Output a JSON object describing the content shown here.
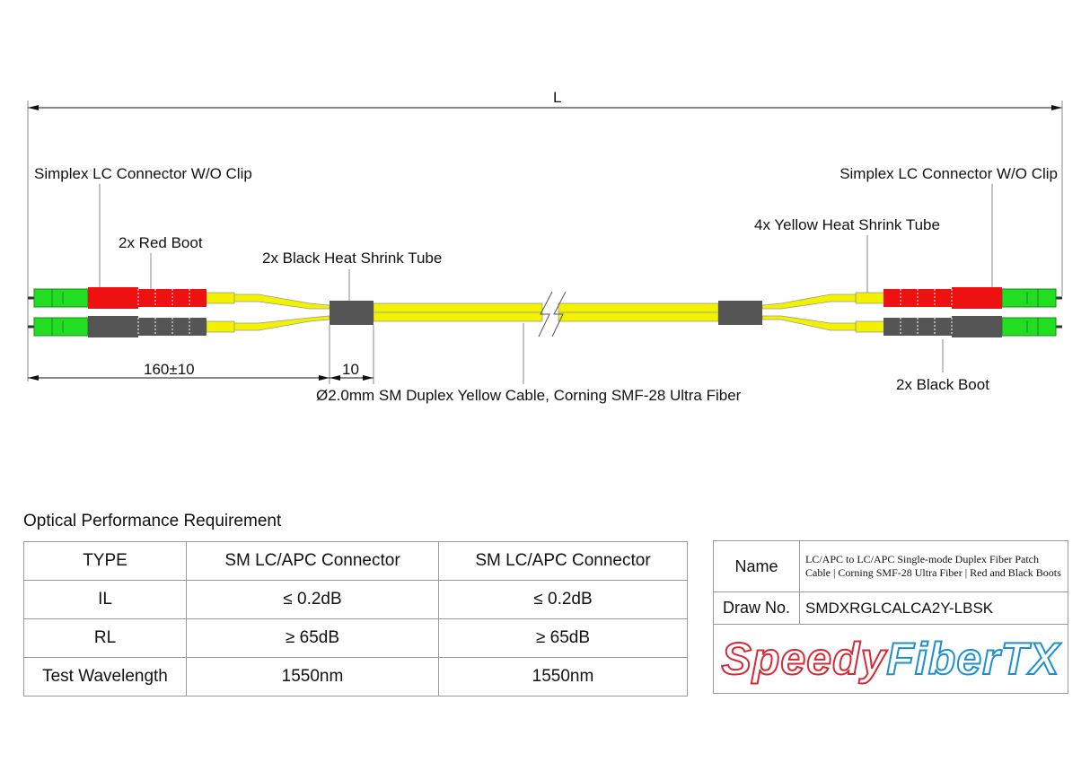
{
  "drawing": {
    "length_label": "L",
    "left_connector_label": "Simplex LC Connector W/O Clip",
    "right_connector_label": "Simplex LC Connector W/O Clip",
    "red_boot_label": "2x Red Boot",
    "black_heat_shrink_label": "2x Black Heat Shrink Tube",
    "yellow_heat_shrink_label": "4x Yellow Heat Shrink Tube",
    "black_boot_label": "2x Black Boot",
    "breakout_dim": "160±10",
    "shrink_dim": "10",
    "cable_label": "Ø2.0mm SM Duplex Yellow Cable, Corning SMF-28 Ultra Fiber",
    "colors": {
      "connector": "#22dd22",
      "red_boot": "#ee1111",
      "black_boot": "#555555",
      "cable": "#f2f200",
      "heat_shrink": "#555555"
    }
  },
  "performance": {
    "title": "Optical Performance Requirement",
    "rows": [
      [
        "TYPE",
        "SM LC/APC Connector",
        "SM LC/APC Connector"
      ],
      [
        "IL",
        "≤ 0.2dB",
        "≤ 0.2dB"
      ],
      [
        "RL",
        "≥ 65dB",
        "≥ 65dB"
      ],
      [
        "Test Wavelength",
        "1550nm",
        "1550nm"
      ]
    ]
  },
  "info": {
    "name_label": "Name",
    "name_value": "LC/APC to LC/APC Single-mode Duplex Fiber Patch Cable | Corning SMF-28 Ultra Fiber | Red and Black Boots",
    "draw_label": "Draw No.",
    "draw_value": "SMDXRGLCALCA2Y-LBSK",
    "logo_part1": "Speedy",
    "logo_part2": "FiberTX",
    "logo_colors": {
      "speedy": "#d42a36",
      "fibertx": "#1d8fd0"
    }
  }
}
